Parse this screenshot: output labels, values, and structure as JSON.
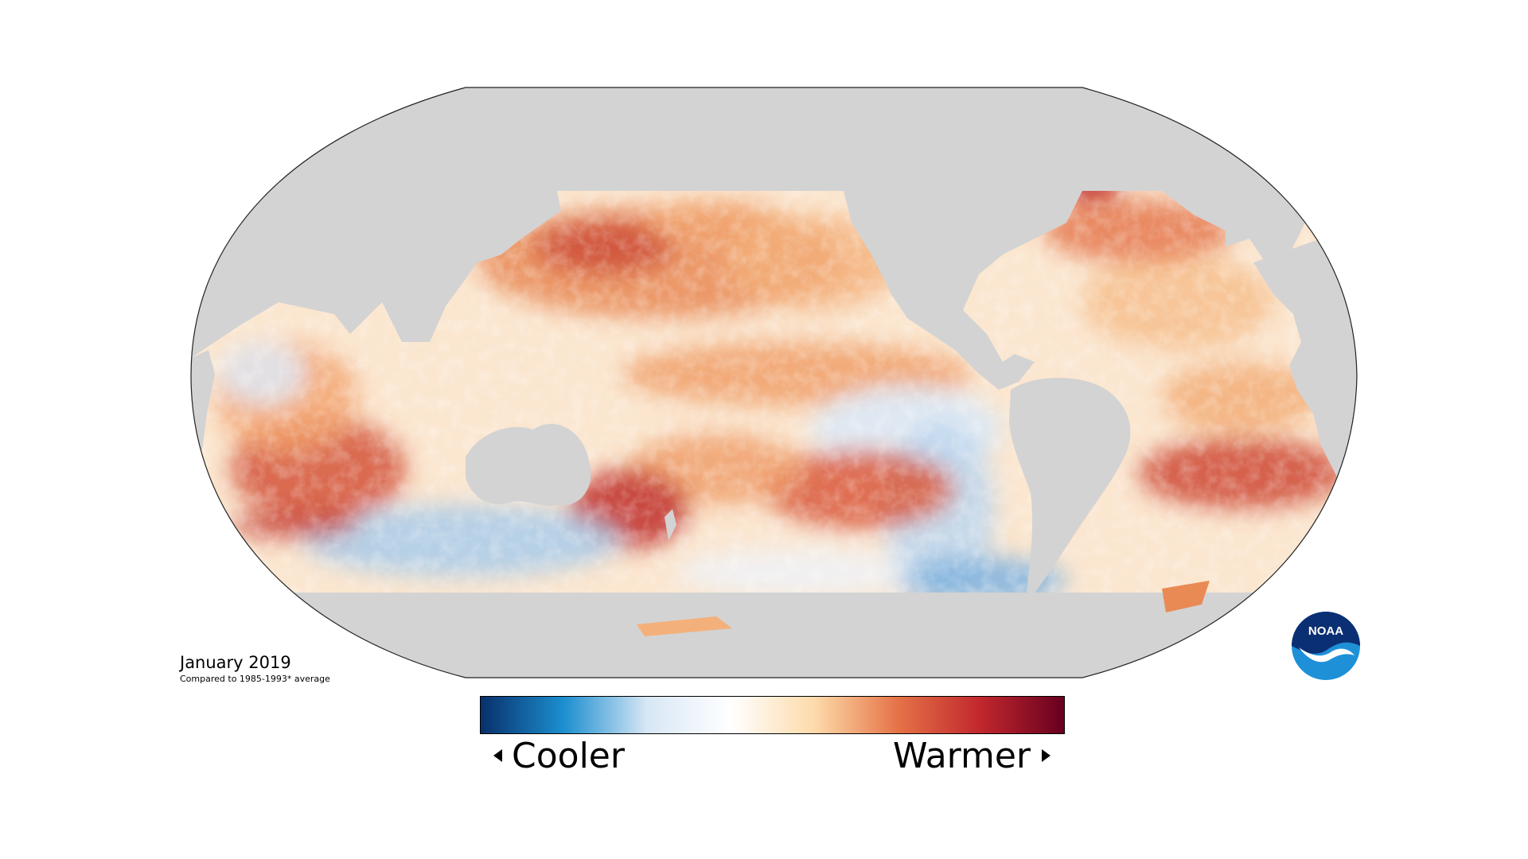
{
  "map": {
    "projection": "Robinson",
    "land_color": "#d3d3d3",
    "palette": [
      "#08306b",
      "#1c8fcf",
      "#d8e7f5",
      "#ffffff",
      "#fddbab",
      "#e57347",
      "#c1272d",
      "#67001f"
    ]
  },
  "caption": {
    "title": "January 2019",
    "subtitle": "Compared to 1985-1993* average"
  },
  "legend": {
    "left_label": "Cooler",
    "right_label": "Warmer",
    "colors": [
      "#08306b",
      "#1c8fcf",
      "#d8e7f5",
      "#ffffff",
      "#fddbab",
      "#e57347",
      "#c1272d",
      "#67001f"
    ]
  },
  "logo": {
    "text": "NOAA",
    "icon": "noaa-logo-icon"
  }
}
